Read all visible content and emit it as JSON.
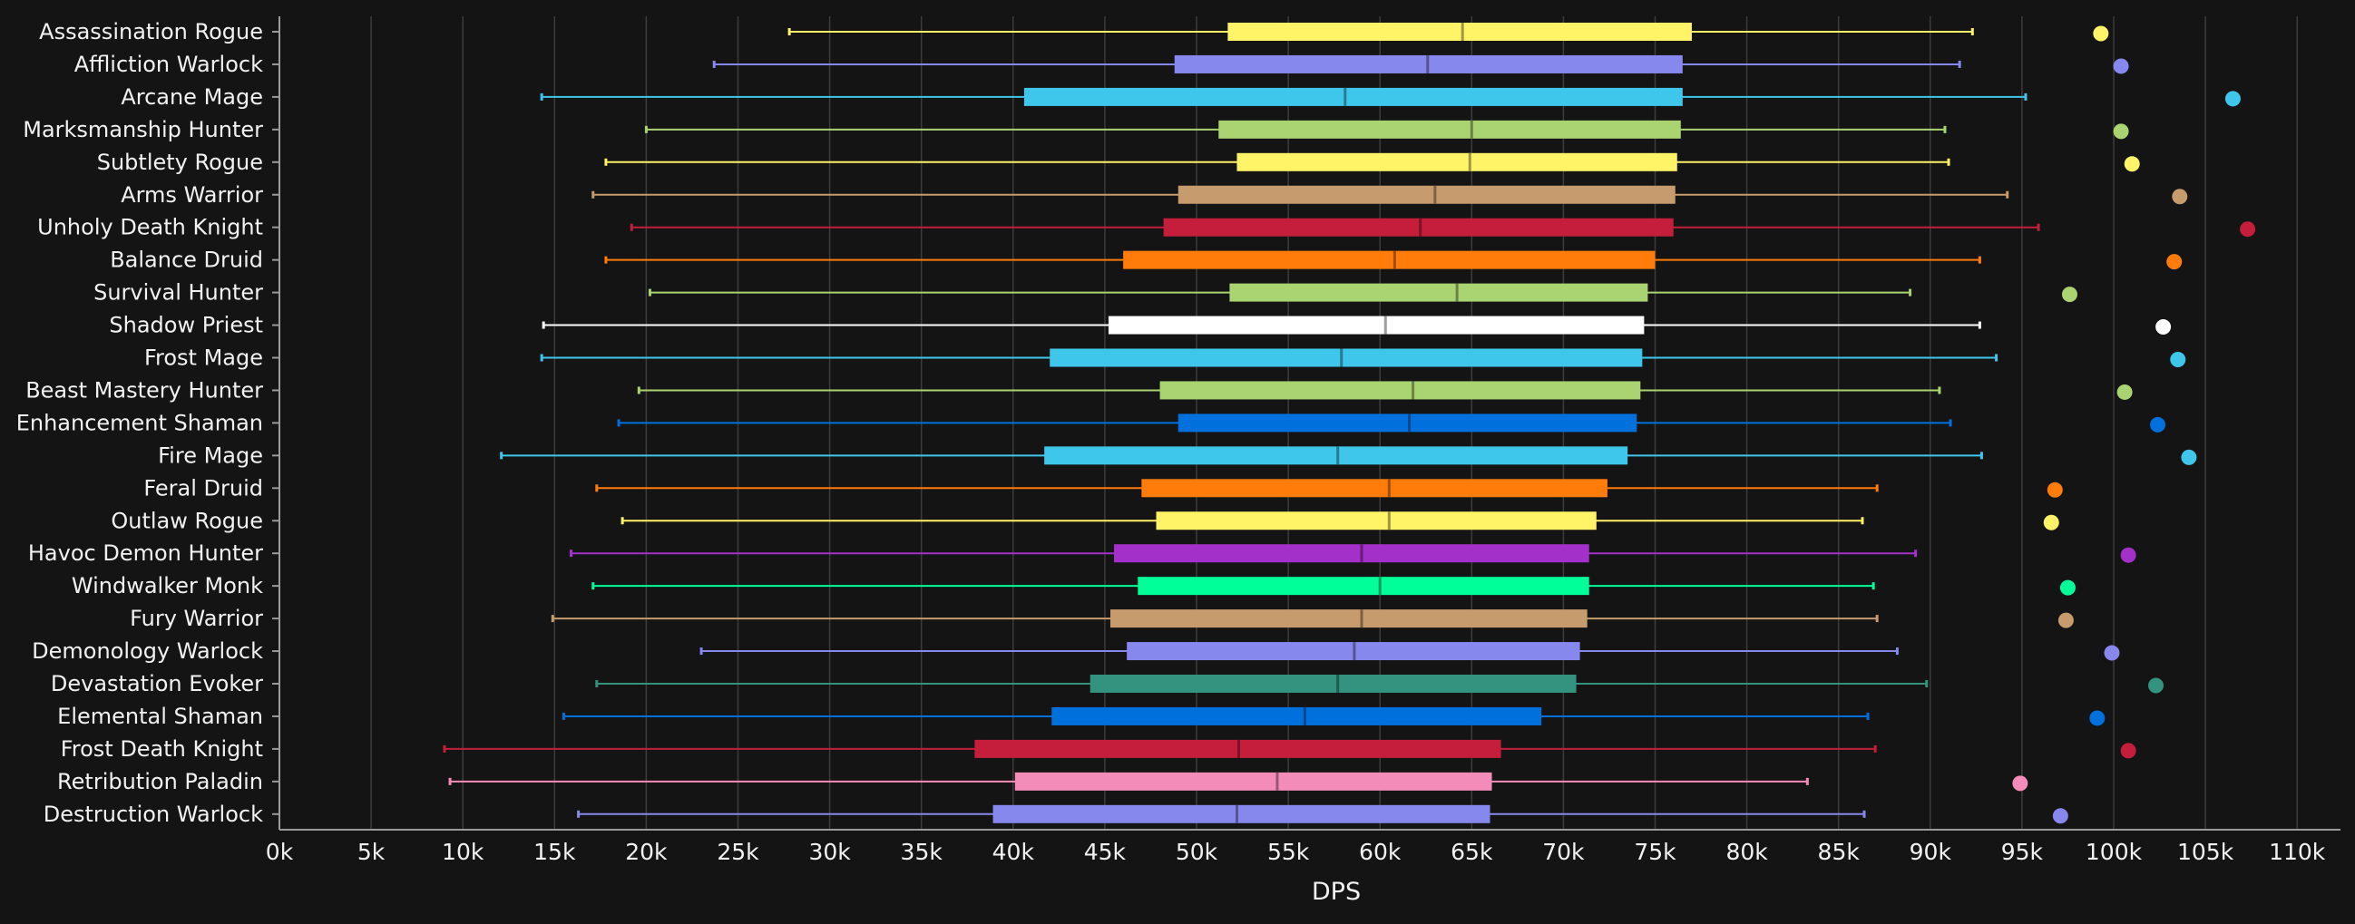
{
  "chart_data": {
    "type": "boxplot",
    "title": "",
    "xlabel": "DPS",
    "ylabel": "",
    "xlim": [
      0,
      112000
    ],
    "grid": true,
    "legend": "none",
    "x_ticks": [
      0,
      5000,
      10000,
      15000,
      20000,
      25000,
      30000,
      35000,
      40000,
      45000,
      50000,
      55000,
      60000,
      65000,
      70000,
      75000,
      80000,
      85000,
      90000,
      95000,
      100000,
      105000,
      110000
    ],
    "x_tick_labels": [
      "0k",
      "5k",
      "10k",
      "15k",
      "20k",
      "25k",
      "30k",
      "35k",
      "40k",
      "45k",
      "50k",
      "55k",
      "60k",
      "65k",
      "70k",
      "75k",
      "80k",
      "85k",
      "90k",
      "95k",
      "100k",
      "105k",
      "110k"
    ],
    "series": [
      {
        "name": "Assassination Rogue",
        "color": "#fff468",
        "min": 27800,
        "q1": 51700,
        "median": 64500,
        "q3": 77000,
        "max": 92300,
        "outlier": 99300
      },
      {
        "name": "Affliction Warlock",
        "color": "#8788ee",
        "min": 23700,
        "q1": 48800,
        "median": 62600,
        "q3": 76500,
        "max": 91600,
        "outlier": 100400
      },
      {
        "name": "Arcane Mage",
        "color": "#3fc7eb",
        "min": 14300,
        "q1": 40600,
        "median": 58100,
        "q3": 76500,
        "max": 95200,
        "outlier": 106500
      },
      {
        "name": "Marksmanship Hunter",
        "color": "#aad372",
        "min": 20000,
        "q1": 51200,
        "median": 65000,
        "q3": 76400,
        "max": 90800,
        "outlier": 100400
      },
      {
        "name": "Subtlety Rogue",
        "color": "#fff468",
        "min": 17800,
        "q1": 52200,
        "median": 64900,
        "q3": 76200,
        "max": 91000,
        "outlier": 101000
      },
      {
        "name": "Arms Warrior",
        "color": "#c69b6d",
        "min": 17100,
        "q1": 49000,
        "median": 63000,
        "q3": 76100,
        "max": 94200,
        "outlier": 103600
      },
      {
        "name": "Unholy Death Knight",
        "color": "#c41e3a",
        "min": 19200,
        "q1": 48200,
        "median": 62200,
        "q3": 76000,
        "max": 95900,
        "outlier": 107300
      },
      {
        "name": "Balance Druid",
        "color": "#ff7c0a",
        "min": 17800,
        "q1": 46000,
        "median": 60800,
        "q3": 75000,
        "max": 92700,
        "outlier": 103300
      },
      {
        "name": "Survival Hunter",
        "color": "#aad372",
        "min": 20200,
        "q1": 51800,
        "median": 64200,
        "q3": 74600,
        "max": 88900,
        "outlier": 97600
      },
      {
        "name": "Shadow Priest",
        "color": "#ffffff",
        "min": 14400,
        "q1": 45200,
        "median": 60300,
        "q3": 74400,
        "max": 92700,
        "outlier": 102700
      },
      {
        "name": "Frost Mage",
        "color": "#3fc7eb",
        "min": 14300,
        "q1": 42000,
        "median": 57900,
        "q3": 74300,
        "max": 93600,
        "outlier": 103500
      },
      {
        "name": "Beast Mastery Hunter",
        "color": "#aad372",
        "min": 19600,
        "q1": 48000,
        "median": 61800,
        "q3": 74200,
        "max": 90500,
        "outlier": 100600
      },
      {
        "name": "Enhancement Shaman",
        "color": "#0070dd",
        "min": 18500,
        "q1": 49000,
        "median": 61600,
        "q3": 74000,
        "max": 91100,
        "outlier": 102400
      },
      {
        "name": "Fire Mage",
        "color": "#3fc7eb",
        "min": 12100,
        "q1": 41700,
        "median": 57700,
        "q3": 73500,
        "max": 92800,
        "outlier": 104100
      },
      {
        "name": "Feral Druid",
        "color": "#ff7c0a",
        "min": 17300,
        "q1": 47000,
        "median": 60500,
        "q3": 72400,
        "max": 87100,
        "outlier": 96800
      },
      {
        "name": "Outlaw Rogue",
        "color": "#fff468",
        "min": 18700,
        "q1": 47800,
        "median": 60500,
        "q3": 71800,
        "max": 86300,
        "outlier": 96600
      },
      {
        "name": "Havoc Demon Hunter",
        "color": "#a330c9",
        "min": 15900,
        "q1": 45500,
        "median": 59000,
        "q3": 71400,
        "max": 89200,
        "outlier": 100800
      },
      {
        "name": "Windwalker Monk",
        "color": "#00ff98",
        "min": 17100,
        "q1": 46800,
        "median": 60000,
        "q3": 71400,
        "max": 86900,
        "outlier": 97500
      },
      {
        "name": "Fury Warrior",
        "color": "#c69b6d",
        "min": 14900,
        "q1": 45300,
        "median": 59000,
        "q3": 71300,
        "max": 87100,
        "outlier": 97400
      },
      {
        "name": "Demonology Warlock",
        "color": "#8788ee",
        "min": 23000,
        "q1": 46200,
        "median": 58600,
        "q3": 70900,
        "max": 88200,
        "outlier": 99900
      },
      {
        "name": "Devastation Evoker",
        "color": "#33937f",
        "min": 17300,
        "q1": 44200,
        "median": 57700,
        "q3": 70700,
        "max": 89800,
        "outlier": 102300
      },
      {
        "name": "Elemental Shaman",
        "color": "#0070dd",
        "min": 15500,
        "q1": 42100,
        "median": 55900,
        "q3": 68800,
        "max": 86600,
        "outlier": 99100
      },
      {
        "name": "Frost Death Knight",
        "color": "#c41e3a",
        "min": 9000,
        "q1": 37900,
        "median": 52300,
        "q3": 66600,
        "max": 87000,
        "outlier": 100800
      },
      {
        "name": "Retribution Paladin",
        "color": "#f48cba",
        "min": 9300,
        "q1": 40100,
        "median": 54400,
        "q3": 66100,
        "max": 83300,
        "outlier": 94900
      },
      {
        "name": "Destruction Warlock",
        "color": "#8788ee",
        "min": 16300,
        "q1": 38900,
        "median": 52200,
        "q3": 66000,
        "max": 86400,
        "outlier": 97100
      }
    ]
  }
}
